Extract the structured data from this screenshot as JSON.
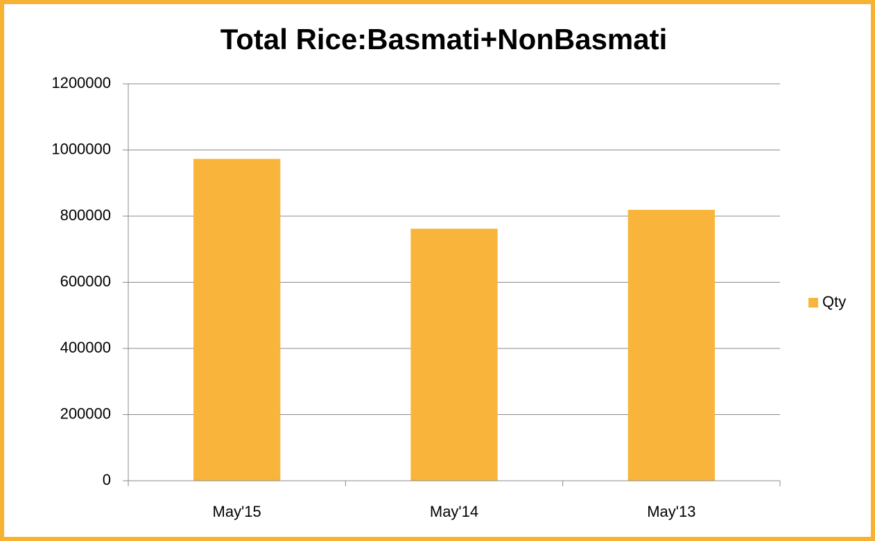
{
  "chart_data": {
    "type": "bar",
    "title": "Total Rice:Basmati+NonBasmati",
    "categories": [
      "May'15",
      "May'14",
      "May'13"
    ],
    "series": [
      {
        "name": "Qty",
        "color": "#f9b53b",
        "values": [
          973000,
          762000,
          819000
        ]
      }
    ],
    "ylim": [
      0,
      1200000
    ],
    "yticks": [
      0,
      200000,
      400000,
      600000,
      800000,
      1000000,
      1200000
    ],
    "grid": true,
    "legend": "right"
  }
}
